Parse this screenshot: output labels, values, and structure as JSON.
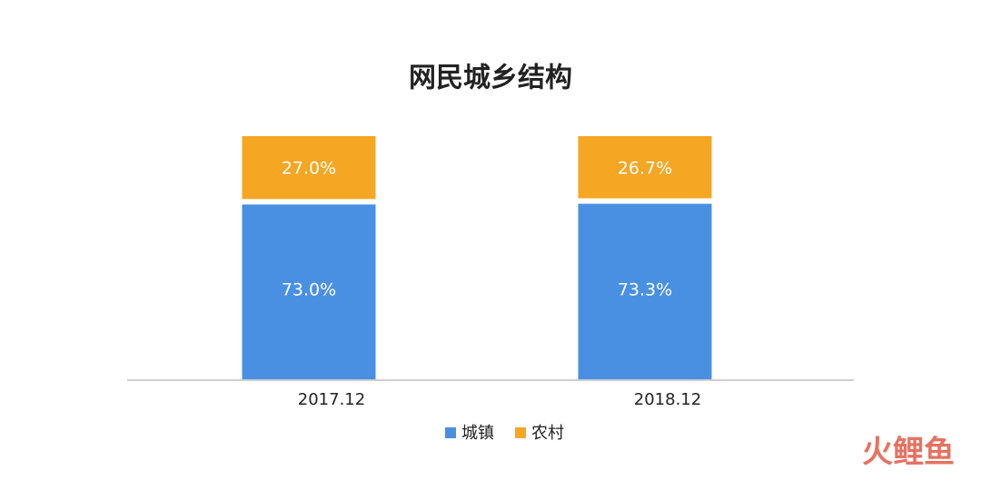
{
  "chart_data": {
    "type": "stacked_bar",
    "title": "网民城乡结构",
    "categories": [
      "2017.12",
      "2018.12"
    ],
    "series": [
      {
        "name": "城镇",
        "color": "#4a90e2",
        "values": [
          73.0,
          73.3
        ],
        "value_labels": [
          "73.0%",
          "73.3%"
        ]
      },
      {
        "name": "农村",
        "color": "#f5a623",
        "values": [
          27.0,
          26.7
        ],
        "value_labels": [
          "27.0%",
          "26.7%"
        ]
      }
    ],
    "ylim": [
      0,
      100
    ],
    "legend": "bottom"
  },
  "watermark": "火鲤鱼"
}
